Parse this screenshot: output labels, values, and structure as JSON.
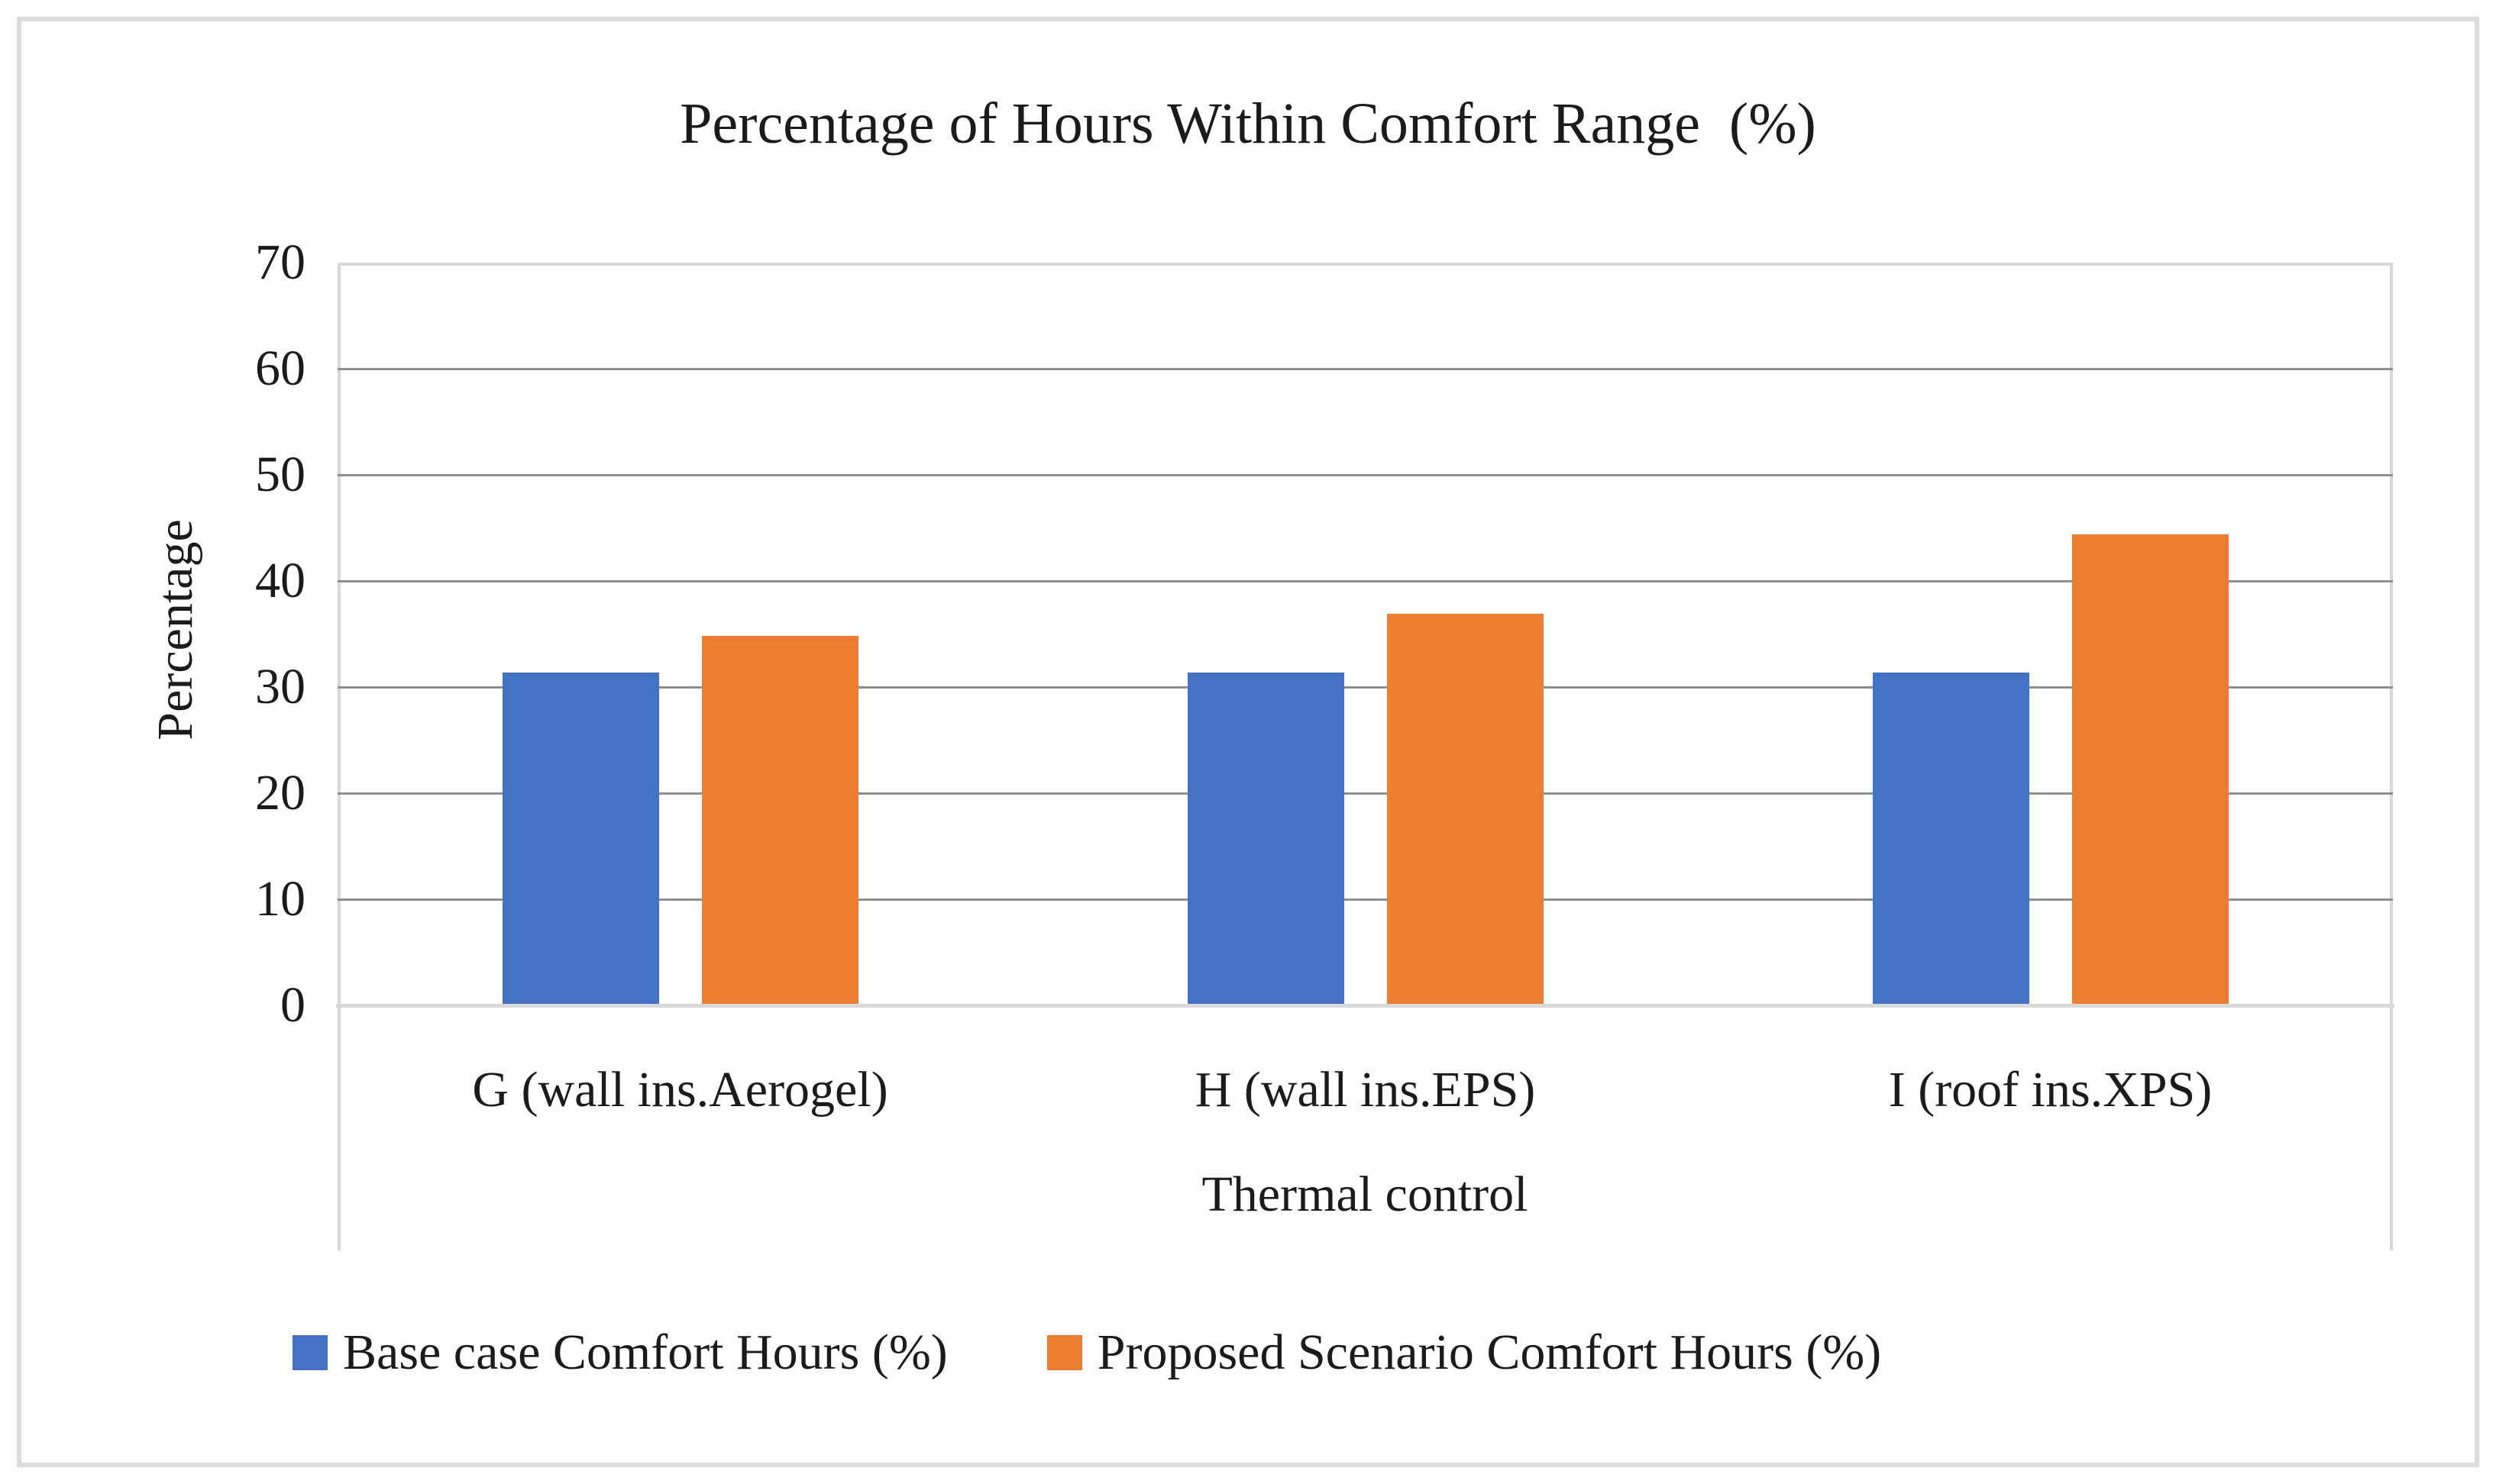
{
  "chart_data": {
    "type": "bar",
    "title": "Percentage of Hours Within Comfort Range  (%)",
    "categories": [
      "G (wall ins.Aerogel)",
      "H (wall ins.EPS)",
      "I (roof ins.XPS)"
    ],
    "series": [
      {
        "name": "Base case Comfort Hours (%)",
        "color": "#4472C4",
        "values": [
          31.4,
          31.4,
          31.4
        ]
      },
      {
        "name": "Proposed Scenario Comfort Hours (%)",
        "color": "#ED7D31",
        "values": [
          34.8,
          36.9,
          44.4
        ]
      }
    ],
    "xlabel": "Thermal control",
    "ylabel": "Percentage",
    "ylim": [
      0,
      70
    ],
    "yticks": [
      0,
      10,
      20,
      30,
      40,
      50,
      60,
      70
    ],
    "grid": true,
    "legend_position": "bottom"
  }
}
